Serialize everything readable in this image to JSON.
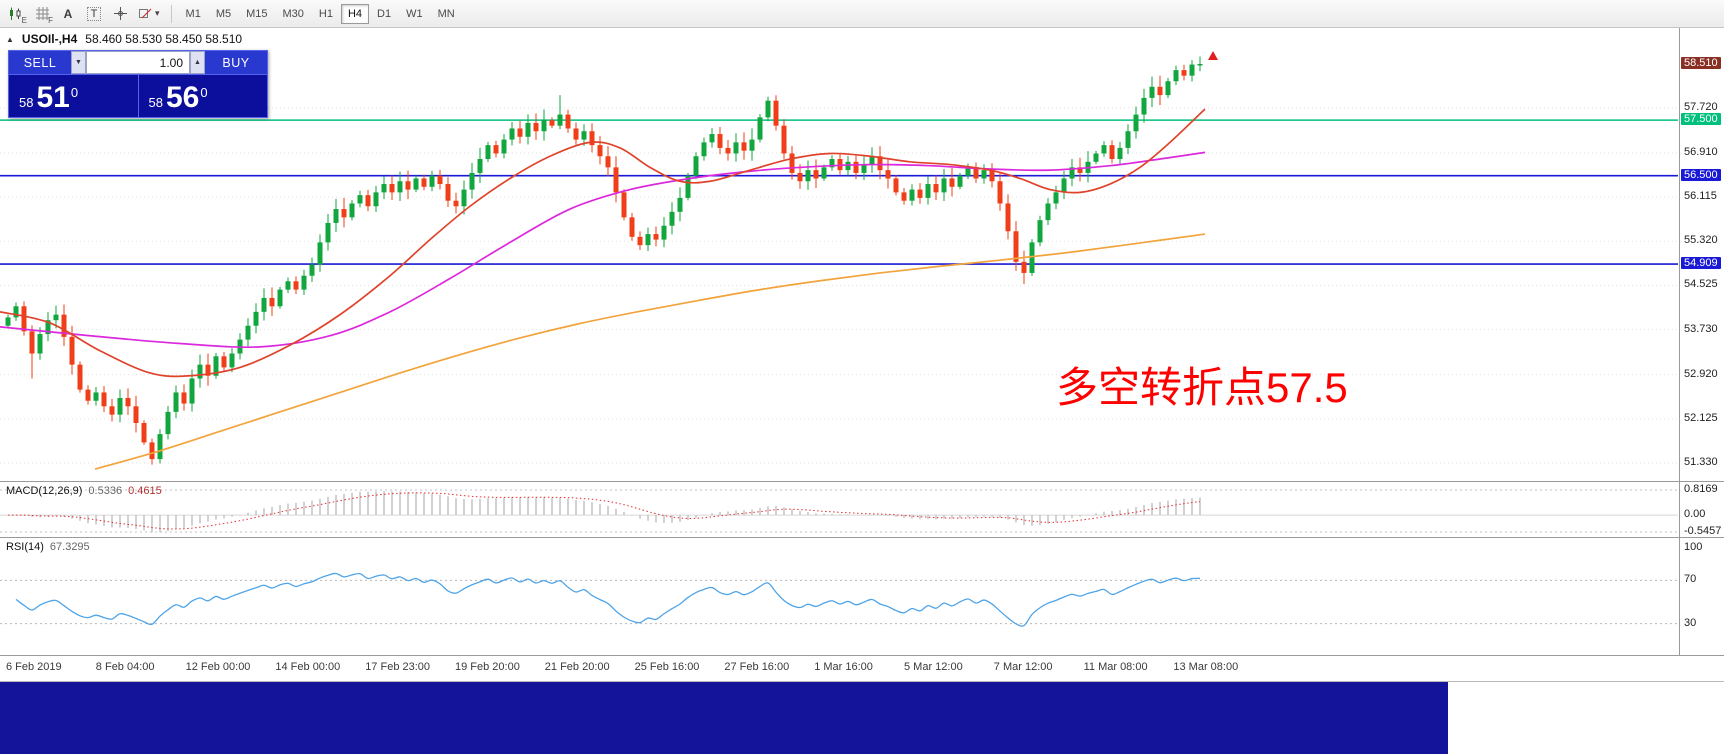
{
  "window": {
    "collapse_icon": "▲",
    "symbol_tf": "USOIl-,H4",
    "quotes": "58.460 58.530 58.450 58.510"
  },
  "toolbar": {
    "timeframes": [
      "M1",
      "M5",
      "M15",
      "M30",
      "H1",
      "H4",
      "D1",
      "W1",
      "MN"
    ],
    "active": "H4",
    "text_tool": "A",
    "textbox_tool": "T",
    "caret": "▾",
    "sub_e": "E",
    "sub_f": "F"
  },
  "trade_panel": {
    "sell_label": "SELL",
    "buy_label": "BUY",
    "volume": "1.00",
    "spinner_down": "▼",
    "spinner_up": "▲",
    "sell_price": {
      "prefix": "58",
      "big": "51",
      "sup": "0"
    },
    "buy_price": {
      "prefix": "58",
      "big": "56",
      "sup": "0"
    }
  },
  "annotation": {
    "text": "多空转折点57.5"
  },
  "colors": {
    "candle_up": "#12a63e",
    "candle_down": "#f03f18",
    "ma_fast": "#e0432b",
    "ma_mid": "#dc28dc",
    "ma_slow": "#f2a33c",
    "level_green": "#00c07e",
    "level_blue": "#1a1ad6",
    "current_price_bg": "#8a2f24",
    "macd_hist": "#b4b4b4",
    "macd_signal": "#e03030",
    "rsi_line": "#4fa4e8",
    "grid": "#e3e3e3",
    "bottom_bar": "#14149b",
    "annotation_red": "#ff0000"
  },
  "chart_data": {
    "type": "candlestick",
    "symbol": "USOIL",
    "timeframe": "H4",
    "current_bar": {
      "open": "58.460",
      "high": "58.530",
      "low": "58.450",
      "close": "58.510"
    },
    "x_start": 8,
    "x_step": 8,
    "open_first": 53.8,
    "closes": [
      53.95,
      54.15,
      53.7,
      53.3,
      53.65,
      53.9,
      54.0,
      53.6,
      53.1,
      52.65,
      52.45,
      52.6,
      52.35,
      52.2,
      52.5,
      52.35,
      52.05,
      51.7,
      51.4,
      51.85,
      52.25,
      52.6,
      52.4,
      52.85,
      53.1,
      52.9,
      53.25,
      53.05,
      53.3,
      53.55,
      53.8,
      54.05,
      54.3,
      54.15,
      54.45,
      54.6,
      54.45,
      54.7,
      54.9,
      55.3,
      55.65,
      55.9,
      55.75,
      56.0,
      56.15,
      55.95,
      56.2,
      56.35,
      56.2,
      56.4,
      56.25,
      56.45,
      56.3,
      56.5,
      56.35,
      56.05,
      55.95,
      56.25,
      56.55,
      56.8,
      57.05,
      56.9,
      57.15,
      57.35,
      57.2,
      57.45,
      57.3,
      57.5,
      57.4,
      57.6,
      57.35,
      57.15,
      57.3,
      57.05,
      56.85,
      56.65,
      56.2,
      55.75,
      55.4,
      55.25,
      55.45,
      55.35,
      55.6,
      55.85,
      56.1,
      56.5,
      56.85,
      57.1,
      57.25,
      57.0,
      56.9,
      57.1,
      56.95,
      57.15,
      57.55,
      57.85,
      57.4,
      56.9,
      56.55,
      56.4,
      56.6,
      56.45,
      56.65,
      56.8,
      56.6,
      56.75,
      56.55,
      56.7,
      56.85,
      56.6,
      56.45,
      56.2,
      56.05,
      56.25,
      56.1,
      56.35,
      56.2,
      56.45,
      56.3,
      56.5,
      56.65,
      56.45,
      56.6,
      56.4,
      56.0,
      55.5,
      54.95,
      54.75,
      55.3,
      55.7,
      56.0,
      56.2,
      56.45,
      56.65,
      56.55,
      56.75,
      56.9,
      57.05,
      56.8,
      57.0,
      57.3,
      57.6,
      57.9,
      58.1,
      57.95,
      58.2,
      58.4,
      58.3,
      58.5,
      58.51
    ],
    "wick_overrides": {
      "3": {
        "low": 52.85
      },
      "18": {
        "low": 51.3
      },
      "69": {
        "high": 57.95
      },
      "95": {
        "high": 57.92
      },
      "127": {
        "low": 54.55
      },
      "148": {
        "high": 58.58
      }
    },
    "moving_averages": [
      {
        "name": "slow-ma",
        "color": "#f2a33c",
        "points": [
          [
            95,
            51.22
          ],
          [
            160,
            51.55
          ],
          [
            220,
            51.9
          ],
          [
            280,
            52.25
          ],
          [
            340,
            52.6
          ],
          [
            400,
            52.95
          ],
          [
            460,
            53.28
          ],
          [
            520,
            53.58
          ],
          [
            580,
            53.84
          ],
          [
            640,
            54.06
          ],
          [
            700,
            54.26
          ],
          [
            760,
            54.45
          ],
          [
            820,
            54.61
          ],
          [
            880,
            54.75
          ],
          [
            940,
            54.87
          ],
          [
            1000,
            54.98
          ],
          [
            1060,
            55.1
          ],
          [
            1120,
            55.24
          ],
          [
            1205,
            55.45
          ]
        ]
      },
      {
        "name": "mid-ma",
        "color": "#dc28dc",
        "points": [
          [
            0,
            53.78
          ],
          [
            90,
            53.62
          ],
          [
            180,
            53.48
          ],
          [
            260,
            53.42
          ],
          [
            330,
            53.62
          ],
          [
            390,
            54.05
          ],
          [
            450,
            54.65
          ],
          [
            510,
            55.3
          ],
          [
            570,
            55.9
          ],
          [
            630,
            56.25
          ],
          [
            690,
            56.45
          ],
          [
            750,
            56.58
          ],
          [
            810,
            56.66
          ],
          [
            870,
            56.7
          ],
          [
            930,
            56.68
          ],
          [
            990,
            56.62
          ],
          [
            1050,
            56.6
          ],
          [
            1110,
            56.68
          ],
          [
            1160,
            56.8
          ],
          [
            1205,
            56.92
          ]
        ]
      },
      {
        "name": "fast-ma",
        "color": "#e0432b",
        "points": [
          [
            0,
            54.05
          ],
          [
            50,
            53.85
          ],
          [
            100,
            53.35
          ],
          [
            150,
            52.95
          ],
          [
            190,
            52.9
          ],
          [
            240,
            53.05
          ],
          [
            290,
            53.45
          ],
          [
            340,
            54.0
          ],
          [
            390,
            54.7
          ],
          [
            430,
            55.35
          ],
          [
            470,
            55.95
          ],
          [
            510,
            56.45
          ],
          [
            550,
            56.85
          ],
          [
            590,
            57.1
          ],
          [
            620,
            57.0
          ],
          [
            650,
            56.65
          ],
          [
            680,
            56.4
          ],
          [
            710,
            56.4
          ],
          [
            750,
            56.6
          ],
          [
            790,
            56.8
          ],
          [
            830,
            56.9
          ],
          [
            870,
            56.85
          ],
          [
            910,
            56.75
          ],
          [
            950,
            56.7
          ],
          [
            990,
            56.6
          ],
          [
            1020,
            56.45
          ],
          [
            1050,
            56.25
          ],
          [
            1080,
            56.2
          ],
          [
            1110,
            56.35
          ],
          [
            1140,
            56.65
          ],
          [
            1170,
            57.1
          ],
          [
            1205,
            57.7
          ]
        ]
      }
    ],
    "levels": [
      {
        "label": "57.500",
        "v": 57.5,
        "color": "#00c07e"
      },
      {
        "label": "56.500",
        "v": 56.5,
        "color": "#1a1ad6"
      },
      {
        "label": "54.909",
        "v": 54.909,
        "color": "#1a1ad6"
      }
    ],
    "current_price": {
      "label": "58.510",
      "v": 58.51
    },
    "y_ticks": [
      {
        "label": "57.720",
        "v": 57.72
      },
      {
        "label": "56.910",
        "v": 56.91
      },
      {
        "label": "56.115",
        "v": 56.115
      },
      {
        "label": "55.320",
        "v": 55.32
      },
      {
        "label": "54.525",
        "v": 54.525
      },
      {
        "label": "53.730",
        "v": 53.73
      },
      {
        "label": "52.920",
        "v": 52.92
      },
      {
        "label": "52.125",
        "v": 52.125
      },
      {
        "label": "51.330",
        "v": 51.33
      }
    ],
    "macd": {
      "label": "MACD(12,26,9)",
      "main_value": "0.5336",
      "signal_value": "0.4615",
      "axis": [
        {
          "label": "0.8169",
          "v": 0.8169
        },
        {
          "label": "0.00",
          "v": 0
        },
        {
          "label": "-0.5457",
          "v": -0.5457
        }
      ],
      "range": [
        -0.5457,
        0.8169
      ]
    },
    "rsi": {
      "label": "RSI(14)",
      "value": "67.3295",
      "axis": [
        {
          "label": "100",
          "v": 100
        },
        {
          "label": "70",
          "v": 70
        },
        {
          "label": "30",
          "v": 30
        }
      ],
      "levels": [
        70,
        30
      ]
    },
    "dates": [
      "6 Feb 2019",
      "8 Feb 04:00",
      "12 Feb 00:00",
      "14 Feb 00:00",
      "17 Feb 23:00",
      "19 Feb 20:00",
      "21 Feb 20:00",
      "25 Feb 16:00",
      "27 Feb 16:00",
      "1 Mar 16:00",
      "5 Mar 12:00",
      "7 Mar 12:00",
      "11 Mar 08:00",
      "13 Mar 08:00"
    ]
  }
}
